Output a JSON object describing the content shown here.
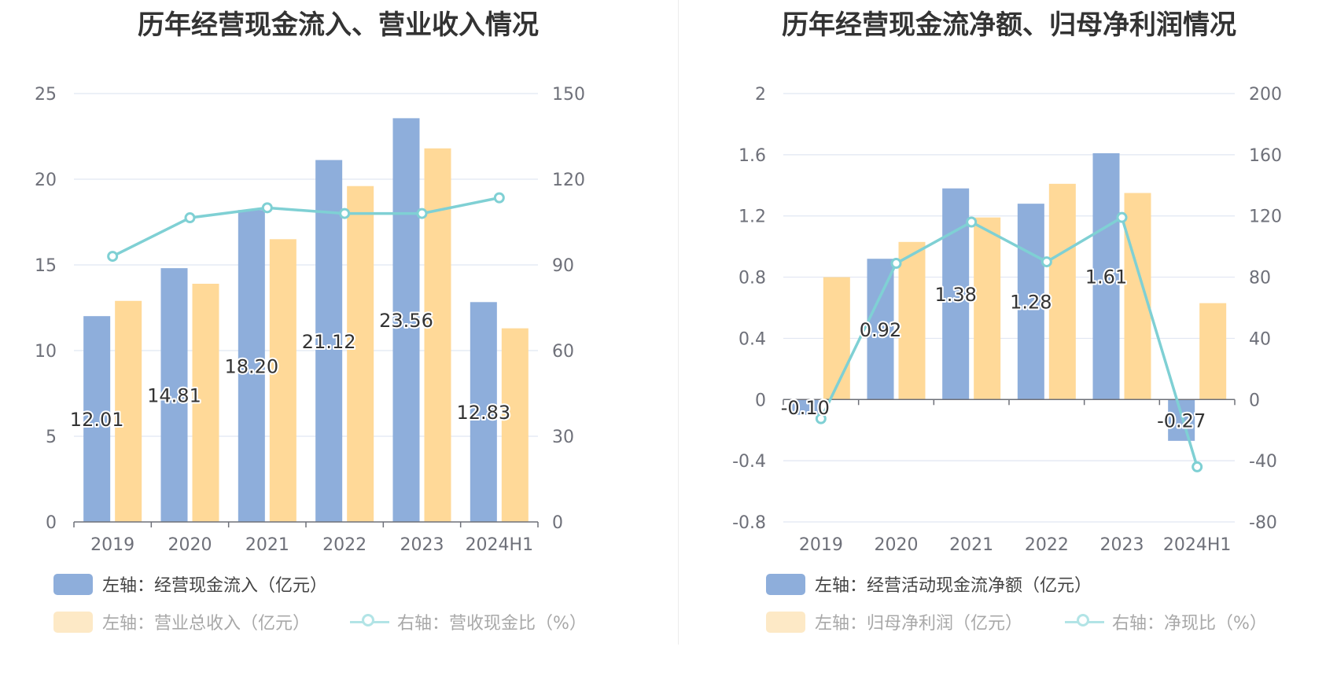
{
  "chart_data": [
    {
      "type": "bar",
      "title": "历年经营现金流入、营业收入情况",
      "categories": [
        "2019",
        "2020",
        "2021",
        "2022",
        "2023",
        "2024H1"
      ],
      "y_left": {
        "min": 0,
        "max": 25,
        "ticks": [
          0,
          5,
          10,
          15,
          20,
          25
        ]
      },
      "y_right": {
        "min": 0,
        "max": 150,
        "ticks": [
          0,
          30,
          60,
          90,
          120,
          150
        ]
      },
      "series": [
        {
          "name": "左轴：经营现金流入（亿元）",
          "axis": "left",
          "type": "bar",
          "values": [
            12.01,
            14.81,
            18.2,
            21.12,
            23.56,
            12.83
          ],
          "labels": true,
          "color": "#8eaedb"
        },
        {
          "name": "左轴：营业总收入（亿元）",
          "axis": "left",
          "type": "bar",
          "values": [
            12.9,
            13.9,
            16.5,
            19.6,
            21.8,
            11.3
          ],
          "color": "#ffd998"
        },
        {
          "name": "右轴：营收现金比（%）",
          "axis": "right",
          "type": "line",
          "values": [
            93.0,
            106.5,
            110.0,
            108.0,
            108.0,
            113.5
          ],
          "color": "#7fd0d4"
        }
      ],
      "legend": "bottom-left",
      "grid": true
    },
    {
      "type": "bar",
      "title": "历年经营现金流净额、归母净利润情况",
      "categories": [
        "2019",
        "2020",
        "2021",
        "2022",
        "2023",
        "2024H1"
      ],
      "y_left": {
        "min": -0.8,
        "max": 2,
        "ticks": [
          -0.8,
          -0.4,
          0,
          0.4,
          0.8,
          1.2,
          1.6,
          2
        ]
      },
      "y_right": {
        "min": -80,
        "max": 200,
        "ticks": [
          -80,
          -40,
          0,
          40,
          80,
          120,
          160,
          200
        ]
      },
      "series": [
        {
          "name": "左轴：经营活动现金流净额（亿元）",
          "axis": "left",
          "type": "bar",
          "values": [
            -0.1,
            0.92,
            1.38,
            1.28,
            1.61,
            -0.27
          ],
          "labels": true,
          "color": "#8eaedb"
        },
        {
          "name": "左轴：归母净利润（亿元）",
          "axis": "left",
          "type": "bar",
          "values": [
            0.8,
            1.03,
            1.19,
            1.41,
            1.35,
            0.63
          ],
          "color": "#ffd998"
        },
        {
          "name": "右轴：净现比（%）",
          "axis": "right",
          "type": "line",
          "values": [
            -12.5,
            89.0,
            116.0,
            90.0,
            119.0,
            -44.0
          ],
          "color": "#7fd0d4"
        }
      ],
      "legend": "bottom-left",
      "grid": true
    }
  ]
}
